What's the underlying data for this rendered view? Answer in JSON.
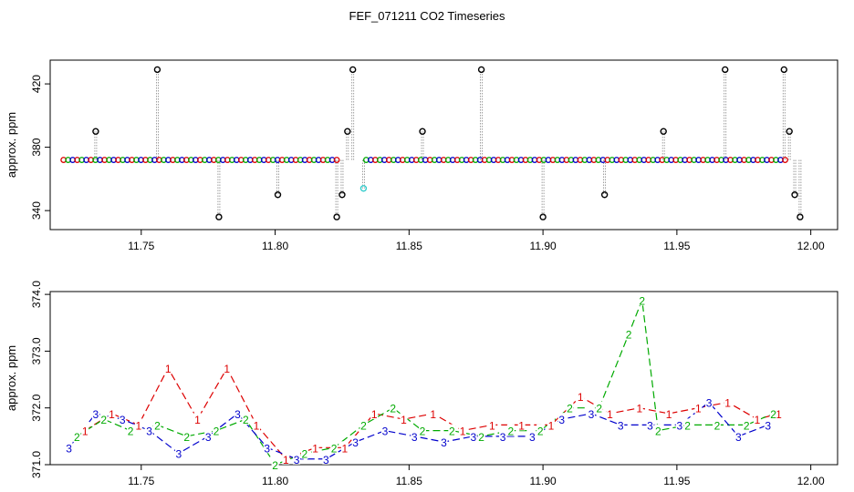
{
  "title": "FEF_071211  CO2 Timeseries",
  "chart_data": [
    {
      "type": "scatter",
      "panel": "top",
      "ylabel": "approx. ppm",
      "xlim": [
        11.716,
        12.01
      ],
      "ylim": [
        328,
        435
      ],
      "xticks": [
        "11.75",
        "11.80",
        "11.85",
        "11.90",
        "11.95",
        "12.00"
      ],
      "yticks": [
        "340",
        "380",
        "420"
      ],
      "colors": {
        "1": "#dd0000",
        "2": "#00aa00",
        "3": "#0000cc",
        "spike": "#000000",
        "dip": "#33cccc",
        "stem": "#888888"
      },
      "baseline_segments": [
        {
          "x_start": 11.721,
          "x_end": 11.824,
          "y": 372,
          "step": 0.0017
        },
        {
          "x_start": 11.834,
          "x_end": 11.991,
          "y": 372,
          "step": 0.0017
        }
      ],
      "spikes": [
        {
          "x": 11.733,
          "y": 390
        },
        {
          "x": 11.756,
          "y": 429
        },
        {
          "x": 11.779,
          "y": 336
        },
        {
          "x": 11.801,
          "y": 350
        },
        {
          "x": 11.823,
          "y": 336
        },
        {
          "x": 11.825,
          "y": 350
        },
        {
          "x": 11.827,
          "y": 390
        },
        {
          "x": 11.829,
          "y": 429
        },
        {
          "x": 11.833,
          "y": 354,
          "kind": "dip"
        },
        {
          "x": 11.855,
          "y": 390
        },
        {
          "x": 11.877,
          "y": 429
        },
        {
          "x": 11.9,
          "y": 336
        },
        {
          "x": 11.923,
          "y": 350
        },
        {
          "x": 11.945,
          "y": 390
        },
        {
          "x": 11.968,
          "y": 429
        },
        {
          "x": 11.99,
          "y": 429
        },
        {
          "x": 11.992,
          "y": 390
        },
        {
          "x": 11.994,
          "y": 350
        },
        {
          "x": 11.996,
          "y": 336
        }
      ]
    },
    {
      "type": "line",
      "panel": "bottom",
      "ylabel": "approx. ppm",
      "xlim": [
        11.716,
        12.01
      ],
      "ylim": [
        371.0,
        374.05
      ],
      "xticks": [
        "11.75",
        "11.80",
        "11.85",
        "11.90",
        "11.95",
        "12.00"
      ],
      "yticks": [
        "371.0",
        "372.0",
        "373.0",
        "374.0"
      ],
      "series": [
        {
          "name": "1",
          "color": "#dd0000",
          "x": [
            11.729,
            11.739,
            11.749,
            11.76,
            11.771,
            11.782,
            11.793,
            11.804,
            11.815,
            11.826,
            11.837,
            11.848,
            11.859,
            11.87,
            11.881,
            11.892,
            11.903,
            11.914,
            11.925,
            11.936,
            11.947,
            11.958,
            11.969,
            11.98,
            11.988
          ],
          "y": [
            371.6,
            371.9,
            371.7,
            372.7,
            371.8,
            372.7,
            371.7,
            371.1,
            371.3,
            371.3,
            371.9,
            371.8,
            371.9,
            371.6,
            371.7,
            371.7,
            371.7,
            372.2,
            371.9,
            372.0,
            371.9,
            372.0,
            372.1,
            371.8,
            371.9
          ]
        },
        {
          "name": "2",
          "color": "#00aa00",
          "x": [
            11.726,
            11.736,
            11.746,
            11.756,
            11.767,
            11.778,
            11.789,
            11.8,
            11.811,
            11.822,
            11.833,
            11.844,
            11.855,
            11.866,
            11.877,
            11.888,
            11.899,
            11.91,
            11.921,
            11.932,
            11.937,
            11.943,
            11.954,
            11.965,
            11.976,
            11.986
          ],
          "y": [
            371.5,
            371.8,
            371.6,
            371.7,
            371.5,
            371.6,
            371.8,
            371.0,
            371.2,
            371.3,
            371.7,
            372.0,
            371.6,
            371.6,
            371.5,
            371.6,
            371.6,
            372.0,
            372.0,
            373.3,
            373.9,
            371.6,
            371.7,
            371.7,
            371.7,
            371.9
          ]
        },
        {
          "name": "3",
          "color": "#0000cc",
          "x": [
            11.723,
            11.733,
            11.743,
            11.753,
            11.764,
            11.775,
            11.786,
            11.797,
            11.808,
            11.819,
            11.83,
            11.841,
            11.852,
            11.863,
            11.874,
            11.885,
            11.896,
            11.907,
            11.918,
            11.929,
            11.94,
            11.951,
            11.962,
            11.973,
            11.984
          ],
          "y": [
            371.3,
            371.9,
            371.8,
            371.6,
            371.2,
            371.5,
            371.9,
            371.3,
            371.1,
            371.1,
            371.4,
            371.6,
            371.5,
            371.4,
            371.5,
            371.5,
            371.5,
            371.8,
            371.9,
            371.7,
            371.7,
            371.7,
            372.1,
            371.5,
            371.7
          ]
        }
      ]
    }
  ]
}
